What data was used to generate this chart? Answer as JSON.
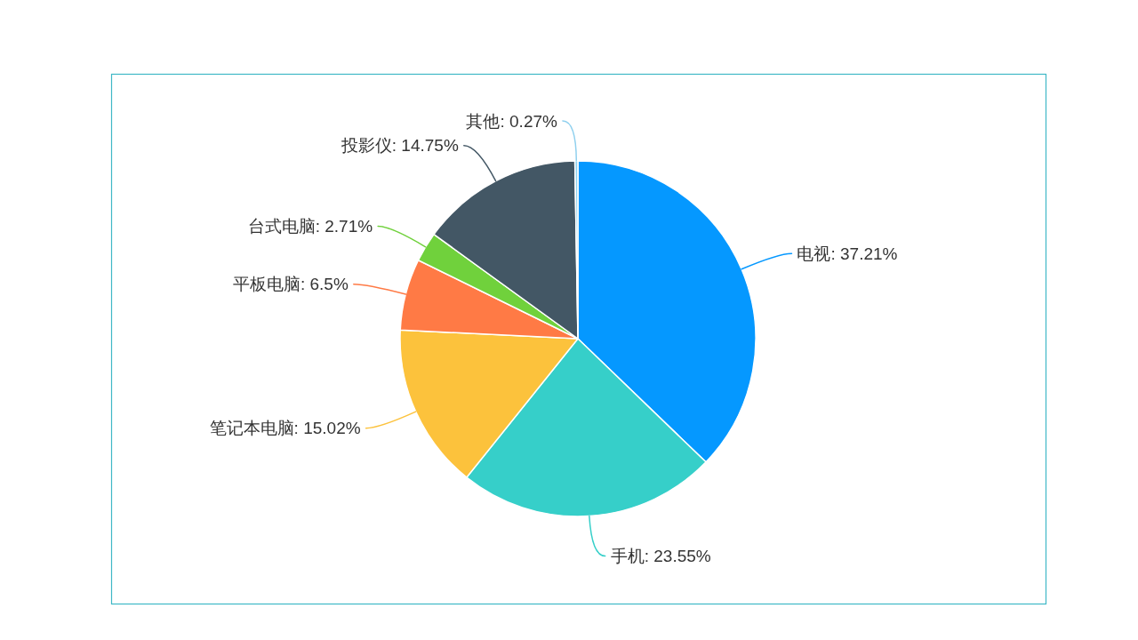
{
  "chart_data": {
    "type": "pie",
    "categories": [
      "电视",
      "手机",
      "笔记本电脑",
      "平板电脑",
      "台式电脑",
      "投影仪",
      "其他"
    ],
    "values": [
      37.21,
      23.55,
      15.02,
      6.5,
      2.71,
      14.75,
      0.27
    ],
    "colors": [
      "#0598ff",
      "#36cfc9",
      "#fcc23c",
      "#ff7a45",
      "#70d13c",
      "#435765",
      "#8fd0ee"
    ],
    "value_labels": [
      "37.21%",
      "23.55%",
      "15.02%",
      "6.5%",
      "2.71%",
      "14.75%",
      "0.27%"
    ]
  }
}
